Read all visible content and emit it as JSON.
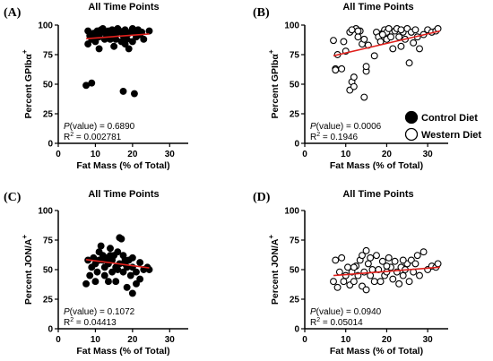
{
  "chart_data": [
    {
      "type": "scatter",
      "panel": "(A)",
      "title": "All Time Points",
      "xlabel": "Fat Mass (% of Total)",
      "ylabel": "Percent GPIbα+",
      "xlim": [
        0,
        35
      ],
      "ylim": [
        0,
        100
      ],
      "xticks": [
        0,
        10,
        20,
        30
      ],
      "yticks": [
        0,
        25,
        50,
        75,
        100
      ],
      "marker": "filled",
      "series": [
        {
          "values": [
            [
              7.5,
              49
            ],
            [
              9,
              51
            ],
            [
              17.5,
              44
            ],
            [
              20.5,
              42
            ],
            [
              8,
              95
            ],
            [
              8.5,
              91
            ],
            [
              9,
              88
            ],
            [
              9.5,
              93
            ],
            [
              10,
              92
            ],
            [
              10.5,
              95
            ],
            [
              11,
              80
            ],
            [
              11,
              90
            ],
            [
              11.5,
              96
            ],
            [
              12,
              94
            ],
            [
              12.5,
              88
            ],
            [
              13,
              92
            ],
            [
              13.5,
              95
            ],
            [
              14,
              90
            ],
            [
              14.5,
              96
            ],
            [
              15,
              82
            ],
            [
              15,
              92
            ],
            [
              15.5,
              88
            ],
            [
              16,
              94
            ],
            [
              16.5,
              95
            ],
            [
              17,
              86
            ],
            [
              17.5,
              91
            ],
            [
              18,
              96
            ],
            [
              18.5,
              88
            ],
            [
              19,
              80
            ],
            [
              19,
              93
            ],
            [
              19.5,
              94
            ],
            [
              20,
              86
            ],
            [
              20.5,
              95
            ],
            [
              21,
              90
            ],
            [
              21.5,
              96
            ],
            [
              22,
              92
            ],
            [
              22.5,
              94
            ],
            [
              23,
              88
            ],
            [
              8,
              84
            ],
            [
              10,
              86
            ],
            [
              12,
              97
            ],
            [
              14,
              88
            ],
            [
              16,
              97
            ],
            [
              18,
              84
            ],
            [
              20,
              97
            ],
            [
              24.5,
              95
            ]
          ]
        }
      ],
      "trend": [
        [
          7.5,
          88.5
        ],
        [
          24.5,
          92.5
        ]
      ],
      "p_label": "(value) = 0.6890",
      "r2_value": " = 0.002781"
    },
    {
      "type": "scatter",
      "panel": "(B)",
      "title": "All Time Points",
      "xlabel": "Fat Mass (% of Total)",
      "ylabel": "Percent GPIbα+",
      "xlim": [
        0,
        35
      ],
      "ylim": [
        0,
        100
      ],
      "xticks": [
        0,
        10,
        20,
        30
      ],
      "yticks": [
        0,
        25,
        50,
        75,
        100
      ],
      "marker": "open",
      "series": [
        {
          "values": [
            [
              7,
              87
            ],
            [
              7.5,
              63
            ],
            [
              7.5,
              62
            ],
            [
              8,
              75
            ],
            [
              9,
              63
            ],
            [
              9.5,
              86
            ],
            [
              10,
              78
            ],
            [
              11,
              94
            ],
            [
              11,
              45
            ],
            [
              11.5,
              52
            ],
            [
              12,
              56
            ],
            [
              12,
              48
            ],
            [
              12.5,
              97
            ],
            [
              13,
              90
            ],
            [
              13.5,
              95
            ],
            [
              14,
              84
            ],
            [
              14.5,
              39
            ],
            [
              14.5,
              88
            ],
            [
              15,
              61
            ],
            [
              15,
              65
            ],
            [
              15.5,
              83
            ],
            [
              17,
              74
            ],
            [
              17.5,
              94
            ],
            [
              18,
              90
            ],
            [
              18.5,
              86
            ],
            [
              19,
              93
            ],
            [
              19.5,
              96
            ],
            [
              20,
              88
            ],
            [
              20,
              94
            ],
            [
              20.5,
              97
            ],
            [
              21,
              90
            ],
            [
              21.5,
              80
            ],
            [
              22,
              95
            ],
            [
              22.5,
              97
            ],
            [
              23,
              90
            ],
            [
              23.5,
              82
            ],
            [
              24,
              94
            ],
            [
              24.5,
              88
            ],
            [
              25,
              97
            ],
            [
              25.5,
              68
            ],
            [
              26,
              94
            ],
            [
              26.5,
              85
            ],
            [
              27,
              96
            ],
            [
              27.5,
              90
            ],
            [
              28,
              80
            ],
            [
              29,
              92
            ],
            [
              30,
              96
            ],
            [
              31,
              94
            ],
            [
              32,
              95
            ],
            [
              32.5,
              97
            ],
            [
              11.5,
              96
            ],
            [
              13,
              95
            ],
            [
              19,
              92
            ],
            [
              23.5,
              96
            ]
          ]
        }
      ],
      "trend": [
        [
          7,
          74
        ],
        [
          33,
          95
        ]
      ],
      "p_label": "(value) = 0.0006",
      "r2_value": " = 0.1946"
    },
    {
      "type": "scatter",
      "panel": "(C)",
      "title": "All Time Points",
      "xlabel": "Fat Mass (% of Total)",
      "ylabel": "Percent JON/A+",
      "xlim": [
        0,
        35
      ],
      "ylim": [
        0,
        100
      ],
      "xticks": [
        0,
        10,
        20,
        30
      ],
      "yticks": [
        0,
        25,
        50,
        75,
        100
      ],
      "marker": "filled",
      "series": [
        {
          "values": [
            [
              7.5,
              38
            ],
            [
              8,
              58
            ],
            [
              8.5,
              45
            ],
            [
              9,
              52
            ],
            [
              9.5,
              60
            ],
            [
              10,
              55
            ],
            [
              10.5,
              48
            ],
            [
              11,
              65
            ],
            [
              11,
              58
            ],
            [
              11.5,
              70
            ],
            [
              12,
              62
            ],
            [
              12.5,
              52
            ],
            [
              12.5,
              45
            ],
            [
              13,
              60
            ],
            [
              13.5,
              55
            ],
            [
              13.5,
              40
            ],
            [
              14,
              68
            ],
            [
              14.5,
              58
            ],
            [
              14.5,
              48
            ],
            [
              15,
              62
            ],
            [
              15.5,
              52
            ],
            [
              15.5,
              40
            ],
            [
              16,
              65
            ],
            [
              16.5,
              77
            ],
            [
              16.5,
              55
            ],
            [
              17,
              76
            ],
            [
              17.5,
              62
            ],
            [
              17.5,
              48
            ],
            [
              18,
              55
            ],
            [
              18.5,
              35
            ],
            [
              18.5,
              52
            ],
            [
              19,
              58
            ],
            [
              19.5,
              45
            ],
            [
              20,
              52
            ],
            [
              20,
              30
            ],
            [
              21,
              48
            ],
            [
              21,
              38
            ],
            [
              22,
              56
            ],
            [
              22,
              42
            ],
            [
              23,
              50
            ],
            [
              24,
              52
            ],
            [
              24.5,
              50
            ],
            [
              10,
              40
            ],
            [
              12,
              58
            ],
            [
              14,
              62
            ],
            [
              16,
              50
            ],
            [
              18,
              58
            ],
            [
              20,
              60
            ]
          ]
        }
      ],
      "trend": [
        [
          7.5,
          58.5
        ],
        [
          24.5,
          51.5
        ]
      ],
      "p_label": "(value) = 0.1072",
      "r2_value": " = 0.04413"
    },
    {
      "type": "scatter",
      "panel": "(D)",
      "title": "All Time Points",
      "xlabel": "Fat Mass (% of Total)",
      "ylabel": "Percent JON/A+",
      "xlim": [
        0,
        35
      ],
      "ylim": [
        0,
        100
      ],
      "xticks": [
        0,
        10,
        20,
        30
      ],
      "yticks": [
        0,
        25,
        50,
        75,
        100
      ],
      "marker": "open",
      "series": [
        {
          "values": [
            [
              7,
              40
            ],
            [
              7.5,
              58
            ],
            [
              8,
              35
            ],
            [
              8.5,
              48
            ],
            [
              9,
              60
            ],
            [
              9.5,
              40
            ],
            [
              10,
              45
            ],
            [
              10.5,
              52
            ],
            [
              11,
              37
            ],
            [
              11.5,
              48
            ],
            [
              12,
              40
            ],
            [
              12.5,
              53
            ],
            [
              13,
              45
            ],
            [
              13.5,
              58
            ],
            [
              14,
              36
            ],
            [
              14,
              62
            ],
            [
              14.5,
              48
            ],
            [
              15,
              33
            ],
            [
              15,
              66
            ],
            [
              15.5,
              55
            ],
            [
              16,
              45
            ],
            [
              16.5,
              50
            ],
            [
              17,
              40
            ],
            [
              17.5,
              62
            ],
            [
              18,
              50
            ],
            [
              18.5,
              40
            ],
            [
              19,
              57
            ],
            [
              19.5,
              45
            ],
            [
              20,
              48
            ],
            [
              20.5,
              60
            ],
            [
              21,
              52
            ],
            [
              21.5,
              42
            ],
            [
              22,
              57
            ],
            [
              22.5,
              48
            ],
            [
              23,
              38
            ],
            [
              23.5,
              52
            ],
            [
              24,
              45
            ],
            [
              24.5,
              50
            ],
            [
              25,
              55
            ],
            [
              25.5,
              40
            ],
            [
              26,
              58
            ],
            [
              26.5,
              48
            ],
            [
              27,
              55
            ],
            [
              27.5,
              62
            ],
            [
              28,
              45
            ],
            [
              29,
              65
            ],
            [
              30,
              50
            ],
            [
              31,
              53
            ],
            [
              32,
              52
            ],
            [
              32.5,
              55
            ],
            [
              12,
              52
            ],
            [
              16,
              60
            ],
            [
              20,
              53
            ],
            [
              24,
              58
            ]
          ]
        }
      ],
      "trend": [
        [
          7,
          45
        ],
        [
          33,
          52
        ]
      ],
      "p_label": "(value) = 0.0940",
      "r2_value": " = 0.05014"
    }
  ],
  "legend": {
    "placement": "right of panel B",
    "items": [
      {
        "label": "Control Diet",
        "marker": "filled"
      },
      {
        "label": "Western Diet",
        "marker": "open"
      }
    ]
  },
  "stat_p_letter": "P",
  "stat_r_letter": "R",
  "colors": {
    "trend": "#e0201c",
    "marker": "#000000"
  }
}
